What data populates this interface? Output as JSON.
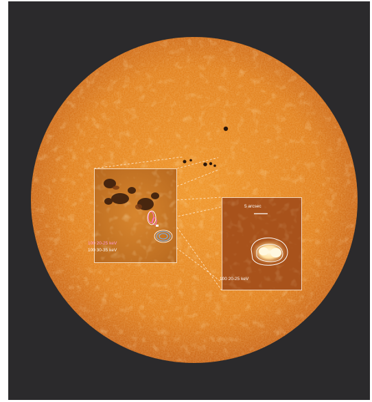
{
  "image": {
    "subject": "sun",
    "colors": {
      "background": "#2b2a2c",
      "disk": "#e0801f",
      "disk_edge": "#c9631a",
      "faculae": "#f4c27a",
      "spot": "#2a160a",
      "inset_frame": "#fff0dc",
      "contour_magenta": "#ff6fd0",
      "contour_blue": "#6fb4ff",
      "contour_white": "#ffffff",
      "kernel": "#fff4d2"
    }
  },
  "inset_left": {
    "labels": [
      "100 20-25 keV",
      "100 30-35 keV"
    ]
  },
  "inset_right": {
    "scale_label": "5 arcsec",
    "label": "100 20-25 keV"
  }
}
